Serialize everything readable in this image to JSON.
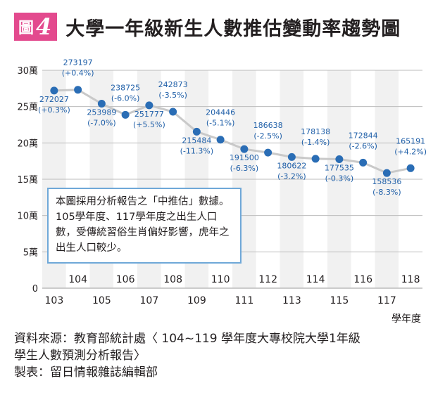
{
  "header": {
    "badge_text": "圖",
    "badge_number": "4",
    "title": "大學一年級新生人數推估變動率趨勢圖"
  },
  "note": "本圖採用分析報告之「中推估」數據。105學年度、117學年度之出生人口數，受傳統習俗生肖偏好影響，虎年之出生人口較少。",
  "source_lines": [
    "資料來源：教育部統計處〈 104~119 學年度大專校院大學1年級",
    "學生人數預測分析報告〉",
    "製表：留日情報雜誌編輯部"
  ],
  "chart_data": {
    "type": "line",
    "title": "大學一年級新生人數推估變動率趨勢圖",
    "xlabel": "學年度",
    "ylabel": "",
    "ylim": [
      0,
      300000
    ],
    "y_ticks": [
      0,
      50000,
      100000,
      150000,
      200000,
      250000,
      300000
    ],
    "y_tick_labels": [
      "0",
      "5萬",
      "10萬",
      "15萬",
      "20萬",
      "25萬",
      "30萬"
    ],
    "x": [
      103,
      104,
      105,
      106,
      107,
      108,
      109,
      110,
      111,
      112,
      113,
      114,
      115,
      116,
      117,
      118
    ],
    "x_tick_labels_bottom": [
      "103",
      "105",
      "107",
      "109",
      "111",
      "113",
      "115",
      "117"
    ],
    "x_tick_labels_top": [
      "104",
      "106",
      "108",
      "110",
      "112",
      "114",
      "116",
      "118"
    ],
    "series": [
      {
        "values": [
          272027,
          273197,
          253989,
          238725,
          251777,
          242873,
          215484,
          204446,
          191500,
          186638,
          180622,
          178138,
          177535,
          172844,
          158536,
          165191
        ],
        "labels": [
          "272027",
          "273197",
          "253989",
          "238725",
          "251777",
          "242873",
          "215484",
          "204446",
          "191500",
          "186638",
          "180622",
          "178138",
          "177535",
          "172844",
          "158536",
          "165191"
        ],
        "changes": [
          "(+0.3%)",
          "(+0.4%)",
          "(-7.0%)",
          "(-6.0%)",
          "(+5.5%)",
          "(-3.5%)",
          "(-11.3%)",
          "(-5.1%)",
          "(-6.3%)",
          "(-2.5%)",
          "(-3.2%)",
          "(-1.4%)",
          "(-0.3%)",
          "(-2.6%)",
          "(-8.3%)",
          "(+4.2%)"
        ]
      }
    ],
    "grid": true,
    "colors": {
      "line": "#c9c9c9",
      "marker": "#2a6db5",
      "label": "#1f5fa8",
      "grid": "#bcbcbc",
      "band_a": "#f1f1f1",
      "band_b": "#ffffff",
      "badge": "#e34a8e",
      "note_border": "#6fa8d8"
    }
  }
}
